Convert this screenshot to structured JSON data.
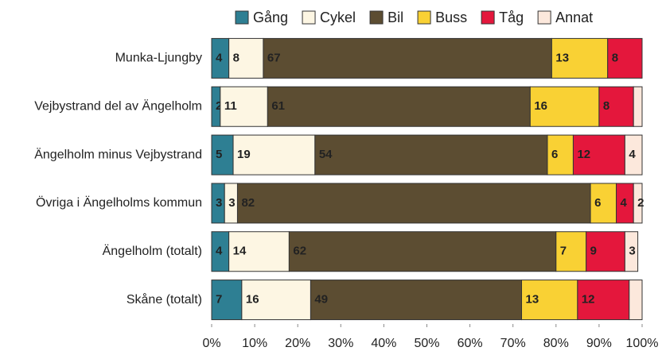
{
  "chart_data": {
    "type": "stacked-bar-horizontal",
    "categories": [
      "Munka-Ljungby",
      "Vejbystrand del av Ängelholm",
      "Ängelholm minus Vejbystrand",
      "Övriga i Ängelholms kommun",
      "Ängelholm (totalt)",
      "Skåne (totalt)"
    ],
    "series": [
      {
        "name": "Gång",
        "color": "#2e7f93",
        "values": [
          4,
          2,
          5,
          3,
          4,
          7
        ]
      },
      {
        "name": "Cykel",
        "color": "#fdf6e3",
        "values": [
          8,
          11,
          19,
          3,
          14,
          16
        ]
      },
      {
        "name": "Bil",
        "color": "#5c4d32",
        "values": [
          67,
          61,
          54,
          82,
          62,
          49
        ]
      },
      {
        "name": "Buss",
        "color": "#f9d134",
        "values": [
          13,
          16,
          6,
          6,
          7,
          13
        ]
      },
      {
        "name": "Tåg",
        "color": "#e4173c",
        "values": [
          8,
          8,
          12,
          4,
          9,
          12
        ]
      },
      {
        "name": "Annat",
        "color": "#fce8dc",
        "values": [
          0,
          2,
          4,
          2,
          3,
          3
        ],
        "value_labels": [
          null,
          null,
          "4",
          "2",
          "3",
          null
        ]
      }
    ],
    "xlim": [
      0,
      100
    ],
    "xticks": [
      {
        "value": 0,
        "label": "0%"
      },
      {
        "value": 10,
        "label": "10%"
      },
      {
        "value": 20,
        "label": "20%"
      },
      {
        "value": 30,
        "label": "30%"
      },
      {
        "value": 40,
        "label": "40%"
      },
      {
        "value": 50,
        "label": "50%"
      },
      {
        "value": 60,
        "label": "60%"
      },
      {
        "value": 70,
        "label": "70%"
      },
      {
        "value": 80,
        "label": "80%"
      },
      {
        "value": 90,
        "label": "90%"
      },
      {
        "value": 100,
        "label": "100%"
      }
    ],
    "legend": "top"
  }
}
